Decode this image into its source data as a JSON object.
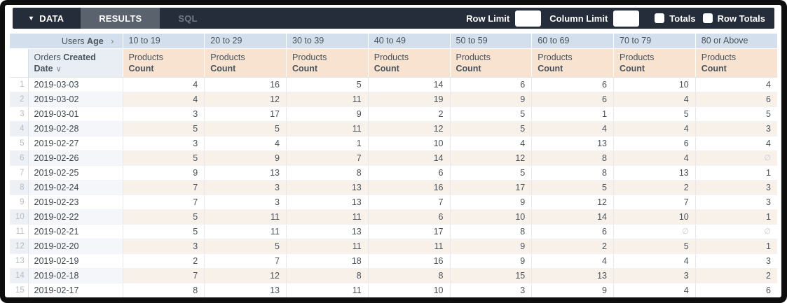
{
  "toolbar": {
    "data_tab": "DATA",
    "results_tab": "RESULTS",
    "sql_tab": "SQL",
    "caret_icon": "▾",
    "row_limit_label": "Row Limit",
    "row_limit_value": "",
    "column_limit_label": "Column Limit",
    "column_limit_value": "",
    "totals_label": "Totals",
    "row_totals_label": "Row Totals",
    "bar_color": "#252c3a",
    "active_tab_color": "#5a626e"
  },
  "table": {
    "pivot_dimension": {
      "normal": "Users",
      "bold": "Age",
      "chevron": "›"
    },
    "pivot_values": [
      "10 to 19",
      "20 to 29",
      "30 to 39",
      "40 to 49",
      "50 to 59",
      "60 to 69",
      "70 to 79",
      "80 or Above"
    ],
    "row_dimension": {
      "normal": "Orders",
      "bold": "Created Date",
      "chevron": "∨"
    },
    "measure": {
      "line1": "Products",
      "line2": "Count"
    },
    "null_symbol": "∅",
    "header_blue": "#d3dfec",
    "header_peach": "#f8e3d1",
    "rows": [
      {
        "n": "1",
        "date": "2019-03-03",
        "values": [
          "4",
          "16",
          "5",
          "14",
          "6",
          "6",
          "10",
          "4"
        ]
      },
      {
        "n": "2",
        "date": "2019-03-02",
        "values": [
          "4",
          "12",
          "11",
          "19",
          "9",
          "6",
          "4",
          "6"
        ]
      },
      {
        "n": "3",
        "date": "2019-03-01",
        "values": [
          "3",
          "17",
          "9",
          "2",
          "5",
          "1",
          "5",
          "5"
        ]
      },
      {
        "n": "4",
        "date": "2019-02-28",
        "values": [
          "5",
          "5",
          "11",
          "12",
          "5",
          "4",
          "4",
          "3"
        ]
      },
      {
        "n": "5",
        "date": "2019-02-27",
        "values": [
          "3",
          "4",
          "1",
          "10",
          "4",
          "13",
          "6",
          "4"
        ]
      },
      {
        "n": "6",
        "date": "2019-02-26",
        "values": [
          "5",
          "9",
          "7",
          "14",
          "12",
          "8",
          "4",
          "∅"
        ]
      },
      {
        "n": "7",
        "date": "2019-02-25",
        "values": [
          "9",
          "13",
          "8",
          "6",
          "5",
          "8",
          "13",
          "1"
        ]
      },
      {
        "n": "8",
        "date": "2019-02-24",
        "values": [
          "7",
          "3",
          "13",
          "16",
          "17",
          "5",
          "2",
          "3"
        ]
      },
      {
        "n": "9",
        "date": "2019-02-23",
        "values": [
          "7",
          "3",
          "13",
          "7",
          "9",
          "12",
          "7",
          "3"
        ]
      },
      {
        "n": "10",
        "date": "2019-02-22",
        "values": [
          "5",
          "11",
          "11",
          "6",
          "10",
          "14",
          "10",
          "1"
        ]
      },
      {
        "n": "11",
        "date": "2019-02-21",
        "values": [
          "5",
          "11",
          "13",
          "17",
          "8",
          "6",
          "∅",
          "∅"
        ]
      },
      {
        "n": "12",
        "date": "2019-02-20",
        "values": [
          "3",
          "5",
          "11",
          "11",
          "9",
          "2",
          "5",
          "1"
        ]
      },
      {
        "n": "13",
        "date": "2019-02-19",
        "values": [
          "2",
          "7",
          "18",
          "16",
          "9",
          "4",
          "4",
          "3"
        ]
      },
      {
        "n": "14",
        "date": "2019-02-18",
        "values": [
          "7",
          "12",
          "8",
          "8",
          "15",
          "13",
          "3",
          "2"
        ]
      },
      {
        "n": "15",
        "date": "2019-02-17",
        "values": [
          "8",
          "13",
          "11",
          "10",
          "3",
          "9",
          "4",
          "6"
        ]
      }
    ]
  }
}
